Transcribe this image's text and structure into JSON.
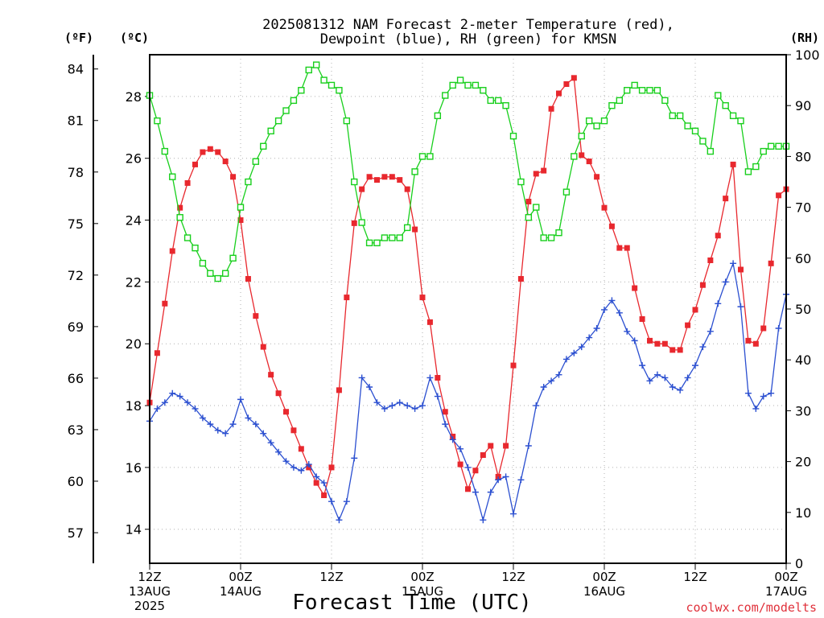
{
  "chart_data": {
    "type": "line",
    "title_line1": "2025081312 NAM Forecast 2-meter Temperature (red),",
    "title_line2": "Dewpoint (blue), RH (green) for KMSN",
    "xlabel": "Forecast Time (UTC)",
    "credit": "coolwx.com/modelts",
    "unit_f": "(ºF)",
    "unit_c": "(ºC)",
    "unit_rh": "(RH)",
    "x_range_hours": [
      0,
      84
    ],
    "x_ticks": [
      {
        "hour": 0,
        "label": "12Z",
        "date": "13AUG",
        "year": "2025"
      },
      {
        "hour": 12,
        "label": "00Z",
        "date": "14AUG",
        "year": ""
      },
      {
        "hour": 24,
        "label": "12Z",
        "date": "",
        "year": ""
      },
      {
        "hour": 36,
        "label": "00Z",
        "date": "15AUG",
        "year": ""
      },
      {
        "hour": 48,
        "label": "12Z",
        "date": "",
        "year": ""
      },
      {
        "hour": 60,
        "label": "00Z",
        "date": "16AUG",
        "year": ""
      },
      {
        "hour": 72,
        "label": "12Z",
        "date": "",
        "year": ""
      },
      {
        "hour": 84,
        "label": "00Z",
        "date": "17AUG",
        "year": ""
      }
    ],
    "y_left_c": {
      "range": [
        12.9,
        29.35
      ],
      "ticks": [
        14,
        16,
        18,
        20,
        22,
        24,
        26,
        28
      ]
    },
    "y_left_f": {
      "ticks": [
        57,
        60,
        63,
        66,
        69,
        72,
        75,
        78,
        81,
        84
      ]
    },
    "y_right_rh": {
      "range": [
        0,
        100
      ],
      "ticks": [
        0,
        10,
        20,
        30,
        40,
        50,
        60,
        70,
        80,
        90,
        100
      ]
    },
    "grid": true,
    "series": [
      {
        "name": "Temperature",
        "unit": "C",
        "color": "#e8282e",
        "marker": "filled-square",
        "x": [
          0,
          1,
          2,
          3,
          4,
          5,
          6,
          7,
          8,
          9,
          10,
          11,
          12,
          13,
          14,
          15,
          16,
          17,
          18,
          19,
          20,
          21,
          22,
          23,
          24,
          25,
          26,
          27,
          28,
          29,
          30,
          31,
          32,
          33,
          34,
          35,
          36,
          37,
          38,
          39,
          40,
          41,
          42,
          43,
          44,
          45,
          46,
          47,
          48,
          49,
          50,
          51,
          52,
          53,
          54,
          55,
          56,
          57,
          58,
          59,
          60,
          61,
          62,
          63,
          64,
          65,
          66,
          67,
          68,
          69,
          70,
          71,
          72,
          73,
          74,
          75,
          76,
          77,
          78,
          79,
          80,
          81,
          82,
          83,
          84
        ],
        "values": [
          18.1,
          19.7,
          21.3,
          23.0,
          24.4,
          25.2,
          25.8,
          26.2,
          26.3,
          26.2,
          25.9,
          25.4,
          24.0,
          22.1,
          20.9,
          19.9,
          19.0,
          18.4,
          17.8,
          17.2,
          16.6,
          16.0,
          15.5,
          15.1,
          16.0,
          18.5,
          21.5,
          23.9,
          25.0,
          25.4,
          25.3,
          25.4,
          25.4,
          25.3,
          25.0,
          23.7,
          21.5,
          20.7,
          18.9,
          17.8,
          17.0,
          16.1,
          15.3,
          15.9,
          16.4,
          16.7,
          15.7,
          16.7,
          19.3,
          22.1,
          24.6,
          25.5,
          25.6,
          27.6,
          28.1,
          28.4,
          28.6,
          26.1,
          25.9,
          25.4,
          24.4,
          23.8,
          23.1,
          23.1,
          21.8,
          20.8,
          20.1,
          20.0,
          20.0,
          19.8,
          19.8,
          20.6,
          21.1,
          21.9,
          22.7,
          23.5,
          24.7,
          25.8,
          22.4,
          20.1,
          20.0,
          20.5,
          22.6,
          24.8,
          25.0
        ]
      },
      {
        "name": "Dewpoint",
        "unit": "C",
        "color": "#2b4fd0",
        "marker": "plus",
        "x": [
          0,
          1,
          2,
          3,
          4,
          5,
          6,
          7,
          8,
          9,
          10,
          11,
          12,
          13,
          14,
          15,
          16,
          17,
          18,
          19,
          20,
          21,
          22,
          23,
          24,
          25,
          26,
          27,
          28,
          29,
          30,
          31,
          32,
          33,
          34,
          35,
          36,
          37,
          38,
          39,
          40,
          41,
          42,
          43,
          44,
          45,
          46,
          47,
          48,
          49,
          50,
          51,
          52,
          53,
          54,
          55,
          56,
          57,
          58,
          59,
          60,
          61,
          62,
          63,
          64,
          65,
          66,
          67,
          68,
          69,
          70,
          71,
          72,
          73,
          74,
          75,
          76,
          77,
          78,
          79,
          80,
          81,
          82,
          83,
          84
        ],
        "values": [
          17.5,
          17.9,
          18.1,
          18.4,
          18.3,
          18.1,
          17.9,
          17.6,
          17.4,
          17.2,
          17.1,
          17.4,
          18.2,
          17.6,
          17.4,
          17.1,
          16.8,
          16.5,
          16.2,
          16.0,
          15.9,
          16.1,
          15.7,
          15.5,
          14.9,
          14.3,
          14.9,
          16.3,
          18.9,
          18.6,
          18.1,
          17.9,
          18.0,
          18.1,
          18.0,
          17.9,
          18.0,
          18.9,
          18.3,
          17.4,
          16.9,
          16.6,
          16.0,
          15.2,
          14.3,
          15.2,
          15.6,
          15.7,
          14.5,
          15.6,
          16.7,
          18.0,
          18.6,
          18.8,
          19.0,
          19.5,
          19.7,
          19.9,
          20.2,
          20.5,
          21.1,
          21.4,
          21.0,
          20.4,
          20.1,
          19.3,
          18.8,
          19.0,
          18.9,
          18.6,
          18.5,
          18.9,
          19.3,
          19.9,
          20.4,
          21.3,
          22.0,
          22.6,
          21.2,
          18.4,
          17.9,
          18.3,
          18.4,
          20.5,
          21.6
        ]
      },
      {
        "name": "RH",
        "unit": "%",
        "color": "#18cf1c",
        "marker": "open-square",
        "x": [
          0,
          1,
          2,
          3,
          4,
          5,
          6,
          7,
          8,
          9,
          10,
          11,
          12,
          13,
          14,
          15,
          16,
          17,
          18,
          19,
          20,
          21,
          22,
          23,
          24,
          25,
          26,
          27,
          28,
          29,
          30,
          31,
          32,
          33,
          34,
          35,
          36,
          37,
          38,
          39,
          40,
          41,
          42,
          43,
          44,
          45,
          46,
          47,
          48,
          49,
          50,
          51,
          52,
          53,
          54,
          55,
          56,
          57,
          58,
          59,
          60,
          61,
          62,
          63,
          64,
          65,
          66,
          67,
          68,
          69,
          70,
          71,
          72,
          73,
          74,
          75,
          76,
          77,
          78,
          79,
          80,
          81,
          82,
          83,
          84
        ],
        "values": [
          92,
          87,
          81,
          76,
          68,
          64,
          62,
          59,
          57,
          56,
          57,
          60,
          70,
          75,
          79,
          82,
          85,
          87,
          89,
          91,
          93,
          97,
          98,
          95,
          94,
          93,
          87,
          75,
          67,
          63,
          63,
          64,
          64,
          64,
          66,
          77,
          80,
          80,
          88,
          92,
          94,
          95,
          94,
          94,
          93,
          91,
          91,
          90,
          84,
          75,
          68,
          70,
          64,
          64,
          65,
          73,
          80,
          84,
          87,
          86,
          87,
          90,
          91,
          93,
          94,
          93,
          93,
          93,
          91,
          88,
          88,
          86,
          85,
          83,
          81,
          92,
          90,
          88,
          87,
          77,
          78,
          81,
          82,
          82,
          82
        ]
      }
    ]
  }
}
